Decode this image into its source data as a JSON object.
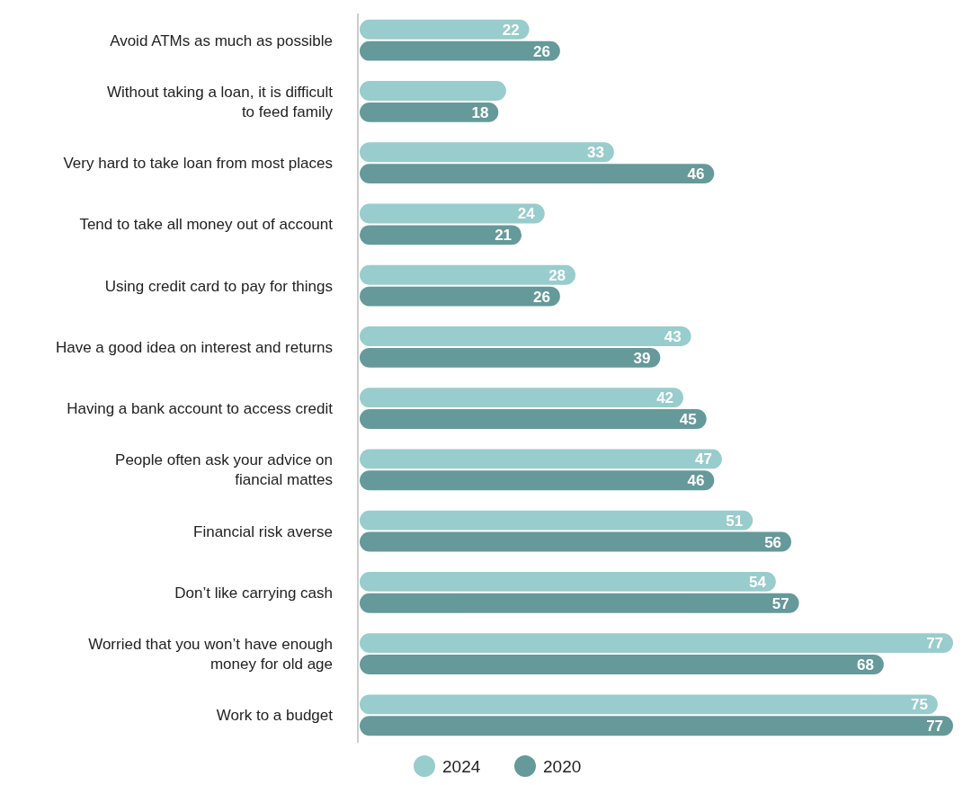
{
  "chart_data": {
    "type": "bar",
    "orientation": "horizontal",
    "legend": "bottom",
    "categories": [
      "Avoid ATMs as much as possible",
      "Without taking a loan, it is difficult to feed family",
      "Very hard to take loan from most places",
      "Tend to take all money out of account",
      "Using credit card to pay for things",
      "Have a good idea on interest and returns",
      "Having a bank account to access credit",
      "People often ask your advice on fiancial mattes",
      "Financial risk averse",
      "Don’t like carrying cash",
      "Worried that you won’t have enough money for old age",
      "Work to a budget"
    ],
    "xlim": [
      0,
      77
    ],
    "series": [
      {
        "name": "2024",
        "color": "#99cccc",
        "values": [
          22,
          19,
          33,
          24,
          28,
          43,
          42,
          47,
          51,
          54,
          77,
          75
        ],
        "value_labels": [
          "22",
          null,
          "33",
          "24",
          "28",
          "43",
          "42",
          "47",
          "51",
          "54",
          "77",
          "75"
        ]
      },
      {
        "name": "2020",
        "color": "#669999",
        "values": [
          26,
          18,
          46,
          21,
          26,
          39,
          45,
          46,
          56,
          57,
          68,
          77
        ],
        "value_labels": [
          "26",
          "18",
          "46",
          "21",
          "26",
          "39",
          "45",
          "46",
          "56",
          "57",
          "68",
          "77"
        ]
      }
    ]
  }
}
